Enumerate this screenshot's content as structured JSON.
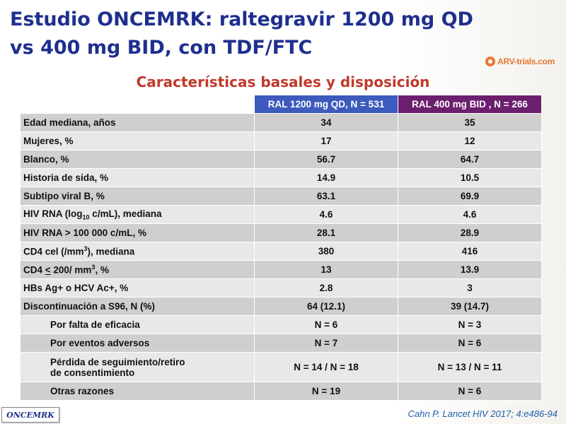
{
  "slide": {
    "title_line1": "Estudio ONCEMRK: raltegravir 1200 mg QD",
    "title_line2": "vs 400 mg BID, con TDF/FTC",
    "logo_text": "ARV-trials.com",
    "subtitle": "Características basales y disposición",
    "badge": "ONCEMRK",
    "citation": "Cahn P. Lancet HIV 2017; 4:e486-94",
    "colors": {
      "title": "#1f2f8f",
      "subtitle": "#c0392b",
      "header_qd": "#3d5bbd",
      "header_bid": "#6c1f6e"
    }
  },
  "table": {
    "headers": [
      "RAL 1200 mg QD, N = 531",
      "RAL 400 mg BID , N = 266"
    ],
    "rows": [
      {
        "label": "Edad mediana, años",
        "qd": "34",
        "bid": "35"
      },
      {
        "label": "Mujeres, %",
        "qd": "17",
        "bid": "12"
      },
      {
        "label": "Blanco, %",
        "qd": "56.7",
        "bid": "64.7"
      },
      {
        "label": "Historia de sida, %",
        "qd": "14.9",
        "bid": "10.5"
      },
      {
        "label": "Subtipo viral B, %",
        "qd": "63.1",
        "bid": "69.9"
      },
      {
        "label_pre": "HIV RNA (log",
        "label_sub": "10",
        "label_post": " c/mL), mediana",
        "qd": "4.6",
        "bid": "4.6"
      },
      {
        "label": "HIV RNA > 100 000 c/mL, %",
        "qd": "28.1",
        "bid": "28.9"
      },
      {
        "label_pre": "CD4 cel  (/mm",
        "label_sup": "3",
        "label_post": "), mediana",
        "qd": "380",
        "bid": "416"
      },
      {
        "label_pre": "CD4 ",
        "label_u": "<",
        "label_mid": " 200/ mm",
        "label_sup": "3",
        "label_post": ", %",
        "qd": "13",
        "bid": "13.9"
      },
      {
        "label": "HBs Ag+ o HCV Ac+, %",
        "qd": "2.8",
        "bid": "3"
      },
      {
        "label": "Discontinuación a S96, N (%)",
        "qd": "64 (12.1)",
        "bid": "39 (14.7)"
      },
      {
        "label": "Por falta de eficacia",
        "qd": "N = 6",
        "bid": "N = 3"
      },
      {
        "label": "Por eventos adversos",
        "qd": "N = 7",
        "bid": "N = 6"
      },
      {
        "label1": "Pérdida de seguimiento/retiro",
        "label2": "de consentimiento",
        "qd": "N = 14 / N = 18",
        "bid": "N = 13 / N = 11"
      },
      {
        "label": "Otras razones",
        "qd": "N = 19",
        "bid": "N = 6"
      }
    ]
  }
}
